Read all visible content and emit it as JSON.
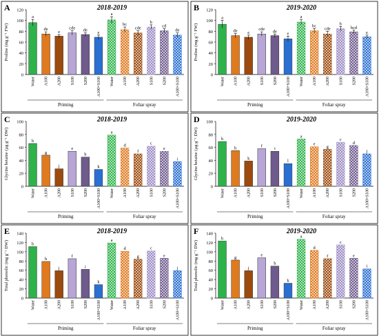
{
  "chart_data": [
    {
      "type": "bar",
      "panel": "A",
      "title": "2018-2019",
      "ylabel": "Proline (mg g⁻¹ FW)",
      "ylim": [
        0,
        120
      ],
      "yticks": [
        0,
        20,
        40,
        60,
        80,
        100,
        120
      ],
      "categories": [
        "Water",
        "A100",
        "A200",
        "S100",
        "S200",
        "A100+S100",
        "Water",
        "A100",
        "A200",
        "S100",
        "S200",
        "A100+S100"
      ],
      "values": [
        96,
        75,
        71,
        77,
        74,
        69,
        101,
        83,
        77,
        88,
        81,
        73
      ],
      "errors": [
        6,
        4,
        3,
        4,
        3,
        4,
        6,
        5,
        4,
        4,
        4,
        4
      ],
      "letters": [
        "a",
        "de",
        "e",
        "cde",
        "de",
        "e",
        "a",
        "bc",
        "cde",
        "b",
        "cd",
        "de"
      ],
      "groups": [
        "Priming",
        "Foliar spray"
      ]
    },
    {
      "type": "bar",
      "panel": "B",
      "title": "2019-2020",
      "ylabel": "Proline (mg g⁻¹ FW)",
      "ylim": [
        0,
        120
      ],
      "yticks": [
        0,
        20,
        40,
        60,
        80,
        100,
        120
      ],
      "categories": [
        "Water",
        "A100",
        "A200",
        "S100",
        "S200",
        "A100+S100",
        "Water",
        "A100",
        "A200",
        "S100",
        "S200",
        "A100+S100"
      ],
      "values": [
        93,
        72,
        69,
        75,
        72,
        66,
        97,
        81,
        75,
        85,
        79,
        70
      ],
      "errors": [
        7,
        4,
        4,
        4,
        3,
        5,
        5,
        4,
        5,
        4,
        3,
        3
      ],
      "letters": [
        "a",
        "de",
        "e",
        "cde",
        "de",
        "e",
        "a",
        "bc",
        "cde",
        "b",
        "bcd",
        "e"
      ],
      "groups": [
        "Priming",
        "Foliar spray"
      ]
    },
    {
      "type": "bar",
      "panel": "C",
      "title": "2018-2019",
      "ylabel": "Glycine betaine (µg g⁻¹ DW)",
      "ylim": [
        0,
        100
      ],
      "yticks": [
        0,
        20,
        40,
        60,
        80,
        100
      ],
      "categories": [
        "Water",
        "A100",
        "A200",
        "S100",
        "S200",
        "A100+S100",
        "Water",
        "A100",
        "A200",
        "S100",
        "S200",
        "A100+S100"
      ],
      "values": [
        66,
        48,
        27,
        54,
        45,
        26,
        79,
        59,
        50,
        62,
        54,
        38
      ],
      "errors": [
        0,
        0,
        0,
        0,
        0,
        0,
        0,
        0,
        0,
        0,
        0,
        0
      ],
      "letters": [
        "b",
        "g",
        "j",
        "e",
        "h",
        "k",
        "a",
        "d",
        "f",
        "c",
        "e",
        "i"
      ],
      "groups": [
        "Priming",
        "Foliar spray"
      ]
    },
    {
      "type": "bar",
      "panel": "D",
      "title": "2019-2020",
      "ylabel": "Glycine betaine (µg g⁻¹ DW)",
      "ylim": [
        0,
        100
      ],
      "yticks": [
        0,
        20,
        40,
        60,
        80,
        100
      ],
      "categories": [
        "Water",
        "A100",
        "A200",
        "S100",
        "S200",
        "A100+S100",
        "Water",
        "A100",
        "A200",
        "S100",
        "S200",
        "A100+S100"
      ],
      "values": [
        69,
        55,
        39,
        58,
        54,
        35,
        73,
        61,
        57,
        68,
        63,
        50
      ],
      "errors": [
        0,
        0,
        0,
        0,
        0,
        0,
        0,
        0,
        0,
        0,
        0,
        0
      ],
      "letters": [
        "b",
        "h",
        "k",
        "f",
        "i",
        "l",
        "a",
        "e",
        "g",
        "c",
        "d",
        "j"
      ],
      "groups": [
        "Priming",
        "Foliar spray"
      ]
    },
    {
      "type": "bar",
      "panel": "E",
      "title": "2018-2019",
      "ylabel": "Total phenolic (mg g⁻¹ DW)",
      "ylim": [
        0,
        140
      ],
      "yticks": [
        0,
        20,
        40,
        60,
        80,
        100,
        120,
        140
      ],
      "categories": [
        "Water",
        "A100",
        "A200",
        "S100",
        "S200",
        "A100+S100",
        "Water",
        "A100",
        "A200",
        "S100",
        "S200",
        "A100+S100"
      ],
      "values": [
        111,
        79,
        59,
        85,
        62,
        29,
        119,
        101,
        84,
        102,
        86,
        59
      ],
      "errors": [
        0,
        0,
        0,
        0,
        0,
        0,
        0,
        0,
        0,
        0,
        0,
        0
      ],
      "letters": [
        "b",
        "h",
        "j",
        "f",
        "i",
        "k",
        "a",
        "d",
        "g",
        "c",
        "e",
        "j"
      ],
      "groups": [
        "Priming",
        "Foliar spray"
      ]
    },
    {
      "type": "bar",
      "panel": "F",
      "title": "2019-2020",
      "ylabel": "Total phenolic (mg g⁻¹ DW)",
      "ylim": [
        0,
        140
      ],
      "yticks": [
        0,
        20,
        40,
        60,
        80,
        100,
        120,
        140
      ],
      "categories": [
        "Water",
        "A100",
        "A200",
        "S100",
        "S200",
        "A100+S100",
        "Water",
        "A100",
        "A200",
        "S100",
        "S200",
        "A100+S100"
      ],
      "values": [
        123,
        82,
        59,
        87,
        69,
        32,
        127,
        103,
        85,
        115,
        86,
        63
      ],
      "errors": [
        0,
        0,
        0,
        0,
        0,
        0,
        0,
        0,
        0,
        0,
        0,
        0
      ],
      "letters": [
        "b",
        "g",
        "j",
        "e",
        "h",
        "k",
        "a",
        "d",
        "f",
        "c",
        "e",
        "i"
      ],
      "groups": [
        "Priming",
        "Foliar spray"
      ]
    }
  ],
  "colors": {
    "water": "#2db34a",
    "a100": "#e07a1f",
    "a200": "#9c4a0e",
    "s100": "#b7a6d6",
    "s200": "#6e5a8c",
    "combo": "#2a6fd1"
  }
}
